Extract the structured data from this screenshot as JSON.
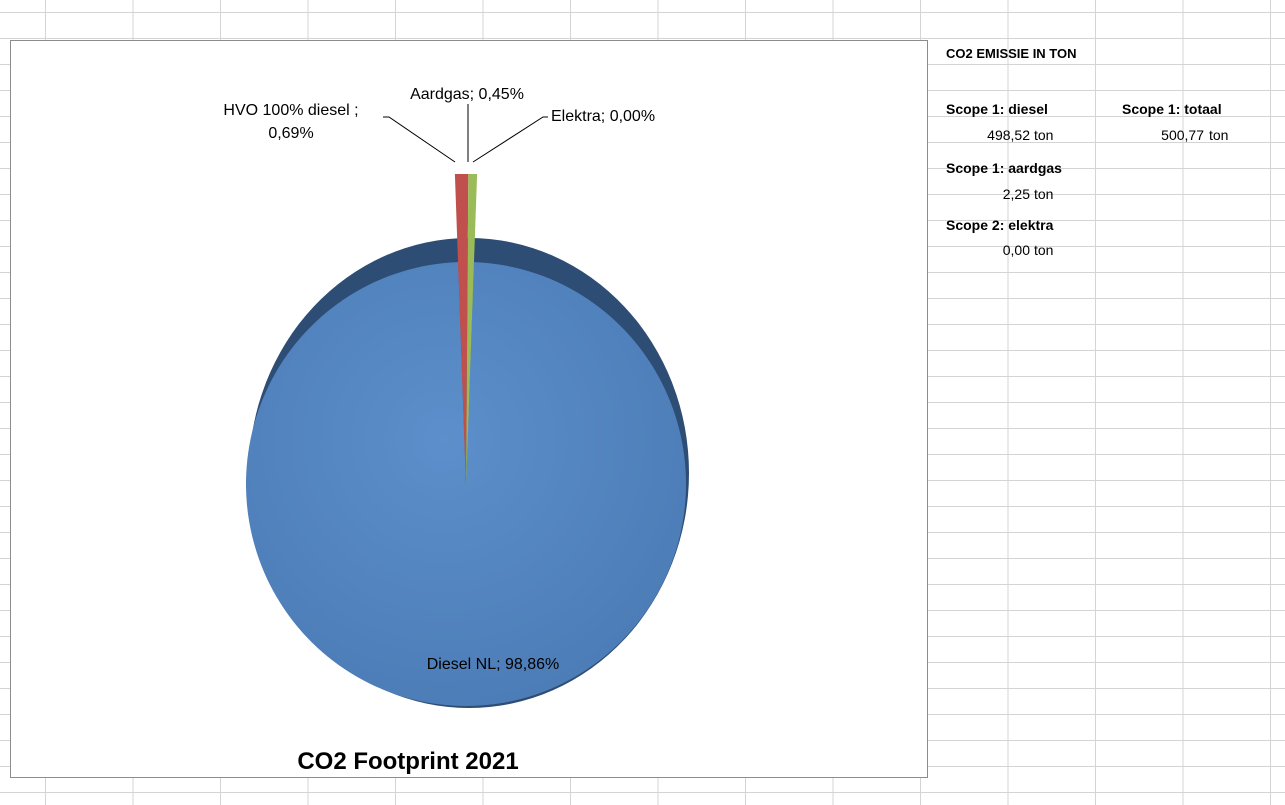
{
  "table": {
    "header": "CO2 EMISSIE IN TON",
    "scope1_diesel_label": "Scope 1: diesel",
    "scope1_diesel_value": "498,52",
    "scope1_total_label": "Scope 1: totaal",
    "scope1_total_value": "500,77",
    "scope1_gas_label": "Scope 1: aardgas",
    "scope1_gas_value": "2,25",
    "scope2_elec_label": "Scope 2: elektra",
    "scope2_elec_value": "0,00",
    "unit": "ton"
  },
  "chart_data": {
    "type": "pie",
    "title": "CO2 Footprint 2021",
    "slices": [
      {
        "name": "Diesel NL",
        "value": 98.86,
        "label": "Diesel NL; 98,86%",
        "color": "#4f81bd"
      },
      {
        "name": "HVO 100% diesel ",
        "value": 0.69,
        "label_line1": "HVO 100% diesel ;",
        "label_line2": "0,69%",
        "color": "#c0504d"
      },
      {
        "name": "Aardgas",
        "value": 0.45,
        "label": "Aardgas; 0,45%",
        "color": "#9bbb59"
      },
      {
        "name": "Elektra",
        "value": 0.0,
        "label": "Elektra; 0,00%",
        "color": "#8064a2"
      }
    ]
  }
}
